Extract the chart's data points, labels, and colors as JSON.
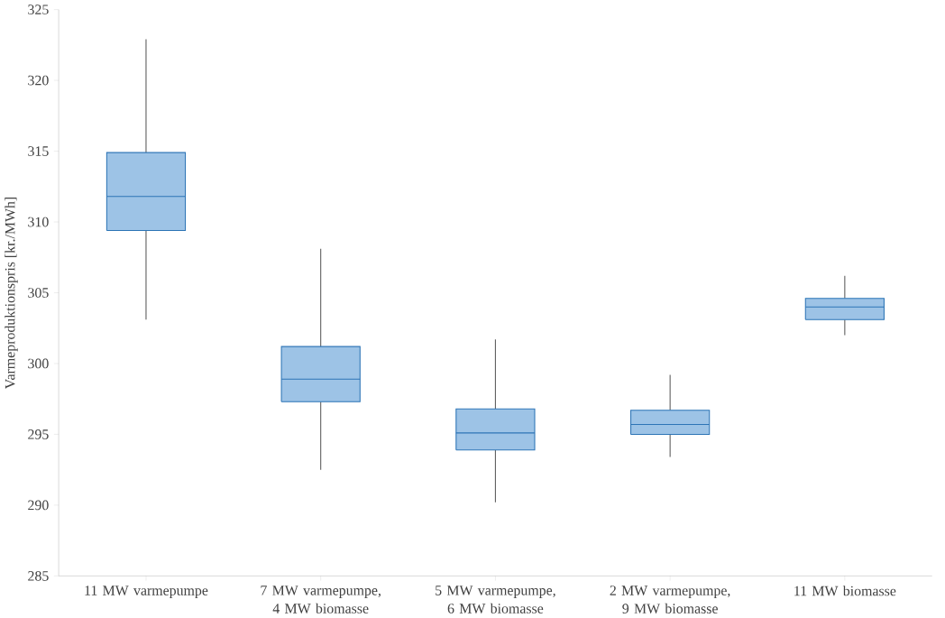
{
  "chart_data": {
    "type": "box",
    "ylabel": "Varmeproduktionspris  [kr./MWh]",
    "color": "#9dc3e6",
    "categories": [
      "11 MW varmepumpe",
      "7 MW varmepumpe, 4 MW biomasse",
      "5 MW varmepumpe, 6 MW biomasse",
      "2 MW varmepumpe, 9 MW biomasse",
      "11 MW biomasse"
    ],
    "boxes": [
      {
        "low": 303.1,
        "q1": 309.4,
        "median": 311.8,
        "q3": 314.9,
        "high": 322.9
      },
      {
        "low": 292.5,
        "q1": 297.3,
        "median": 298.9,
        "q3": 301.2,
        "high": 308.1
      },
      {
        "low": 290.2,
        "q1": 293.9,
        "median": 295.1,
        "q3": 296.8,
        "high": 301.7
      },
      {
        "low": 293.4,
        "q1": 295.0,
        "median": 295.7,
        "q3": 296.7,
        "high": 299.2
      },
      {
        "low": 302.0,
        "q1": 303.1,
        "median": 304.0,
        "q3": 304.6,
        "high": 306.2
      }
    ],
    "ylim": [
      285,
      325
    ],
    "yticks": [
      285,
      290,
      295,
      300,
      305,
      310,
      315,
      320,
      325
    ]
  }
}
